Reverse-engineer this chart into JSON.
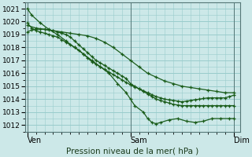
{
  "title": "Pression niveau de la mer( hPa )",
  "xlabels": [
    "Ven",
    "Sam",
    "Dim"
  ],
  "xtick_positions": [
    0,
    24,
    48
  ],
  "ylim": [
    1011.5,
    1021.5
  ],
  "yticks": [
    1012,
    1013,
    1014,
    1015,
    1016,
    1017,
    1018,
    1019,
    1020,
    1021
  ],
  "xlim": [
    -0.5,
    49.5
  ],
  "bg_color": "#cce8e8",
  "grid_color": "#99cccc",
  "line_color": "#1a5c1a",
  "lines": [
    {
      "x": [
        0,
        1,
        3,
        5,
        7,
        9,
        11,
        13,
        15,
        17,
        19,
        21,
        23,
        24,
        25,
        27,
        28,
        29,
        30,
        31,
        33,
        35,
        37,
        39,
        41,
        43,
        45,
        47,
        48
      ],
      "y": [
        1021.0,
        1020.5,
        1019.9,
        1019.4,
        1019.0,
        1018.5,
        1018.0,
        1017.5,
        1017.0,
        1016.5,
        1016.0,
        1015.2,
        1014.5,
        1014.0,
        1013.5,
        1013.0,
        1012.5,
        1012.2,
        1012.1,
        1012.2,
        1012.4,
        1012.5,
        1012.3,
        1012.2,
        1012.3,
        1012.5,
        1012.5,
        1012.5,
        1012.5
      ]
    },
    {
      "x": [
        0,
        2,
        4,
        6,
        8,
        10,
        12,
        14,
        16,
        18,
        20,
        22,
        24,
        26,
        28,
        30,
        32,
        34,
        36,
        38,
        40,
        42,
        44,
        46,
        48
      ],
      "y": [
        1019.7,
        1019.5,
        1019.4,
        1019.3,
        1019.2,
        1019.1,
        1019.0,
        1018.9,
        1018.7,
        1018.4,
        1018.0,
        1017.5,
        1017.0,
        1016.5,
        1016.0,
        1015.7,
        1015.4,
        1015.2,
        1015.0,
        1014.9,
        1014.8,
        1014.7,
        1014.6,
        1014.5,
        1014.5
      ]
    },
    {
      "x": [
        0,
        1,
        2,
        3,
        4,
        5,
        6,
        7,
        8,
        9,
        10,
        11,
        12,
        13,
        14,
        15,
        16,
        17,
        18,
        19,
        20,
        21,
        22,
        23,
        24,
        25,
        26,
        27,
        28,
        29,
        30,
        31,
        32,
        33,
        34,
        35,
        36,
        37,
        38,
        39,
        40,
        41,
        42,
        43,
        44,
        45,
        46,
        47,
        48
      ],
      "y": [
        1019.2,
        1019.35,
        1019.4,
        1019.42,
        1019.4,
        1019.35,
        1019.3,
        1019.2,
        1019.1,
        1019.0,
        1018.8,
        1018.5,
        1018.2,
        1017.9,
        1017.6,
        1017.3,
        1017.0,
        1016.8,
        1016.6,
        1016.4,
        1016.2,
        1016.0,
        1015.8,
        1015.6,
        1015.2,
        1015.0,
        1014.8,
        1014.6,
        1014.4,
        1014.2,
        1014.0,
        1013.9,
        1013.8,
        1013.7,
        1013.6,
        1013.55,
        1013.5,
        1013.5,
        1013.5,
        1013.5,
        1013.5,
        1013.5,
        1013.5,
        1013.5,
        1013.5,
        1013.5,
        1013.5,
        1013.5,
        1013.5
      ]
    },
    {
      "x": [
        0,
        1,
        2,
        3,
        4,
        5,
        6,
        7,
        8,
        9,
        10,
        11,
        12,
        13,
        14,
        15,
        16,
        17,
        18,
        19,
        20,
        21,
        22,
        23,
        24,
        25,
        26,
        27,
        28,
        29,
        30,
        31,
        32,
        33,
        34,
        35,
        36,
        37,
        38,
        39,
        40,
        41,
        42,
        43,
        44,
        45,
        46,
        47,
        48
      ],
      "y": [
        1019.9,
        1019.5,
        1019.3,
        1019.2,
        1019.1,
        1019.0,
        1018.9,
        1018.8,
        1018.6,
        1018.4,
        1018.2,
        1018.0,
        1017.8,
        1017.5,
        1017.2,
        1016.9,
        1016.7,
        1016.5,
        1016.3,
        1016.1,
        1015.9,
        1015.7,
        1015.5,
        1015.3,
        1015.1,
        1014.95,
        1014.8,
        1014.65,
        1014.5,
        1014.35,
        1014.2,
        1014.1,
        1014.0,
        1013.95,
        1013.9,
        1013.85,
        1013.8,
        1013.85,
        1013.9,
        1013.95,
        1014.0,
        1014.05,
        1014.1,
        1014.1,
        1014.1,
        1014.1,
        1014.1,
        1014.2,
        1014.3
      ]
    }
  ]
}
